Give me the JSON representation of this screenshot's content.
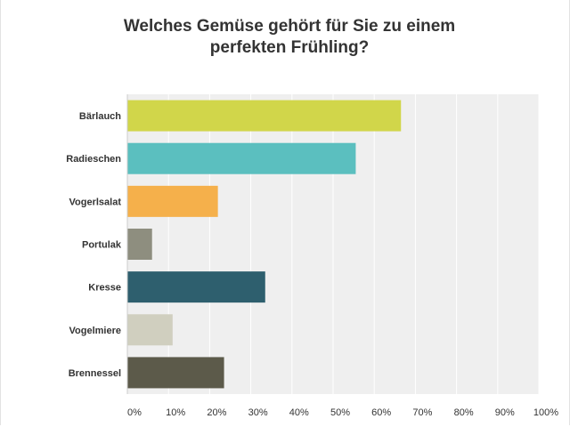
{
  "chart_data": {
    "type": "bar",
    "orientation": "horizontal",
    "title_lines": [
      "Welches Gemüse gehört für Sie zu einem",
      "perfekten Frühling?"
    ],
    "categories": [
      "Bärlauch",
      "Radieschen",
      "Vogerlsalat",
      "Portulak",
      "Kresse",
      "Vogelmiere",
      "Brennessel"
    ],
    "values": [
      66.5,
      55.5,
      22,
      6,
      33.5,
      11,
      23.5
    ],
    "colors": [
      "#d1d64a",
      "#5bbfbf",
      "#f5b04b",
      "#8e8e7f",
      "#2e5f6e",
      "#d0cfbf",
      "#5c5a4a"
    ],
    "x_ticks": [
      "0%",
      "10%",
      "20%",
      "30%",
      "40%",
      "50%",
      "60%",
      "70%",
      "80%",
      "90%",
      "100%"
    ],
    "xlim": [
      0,
      100
    ],
    "grid": true,
    "plot_background": "#efefef"
  }
}
